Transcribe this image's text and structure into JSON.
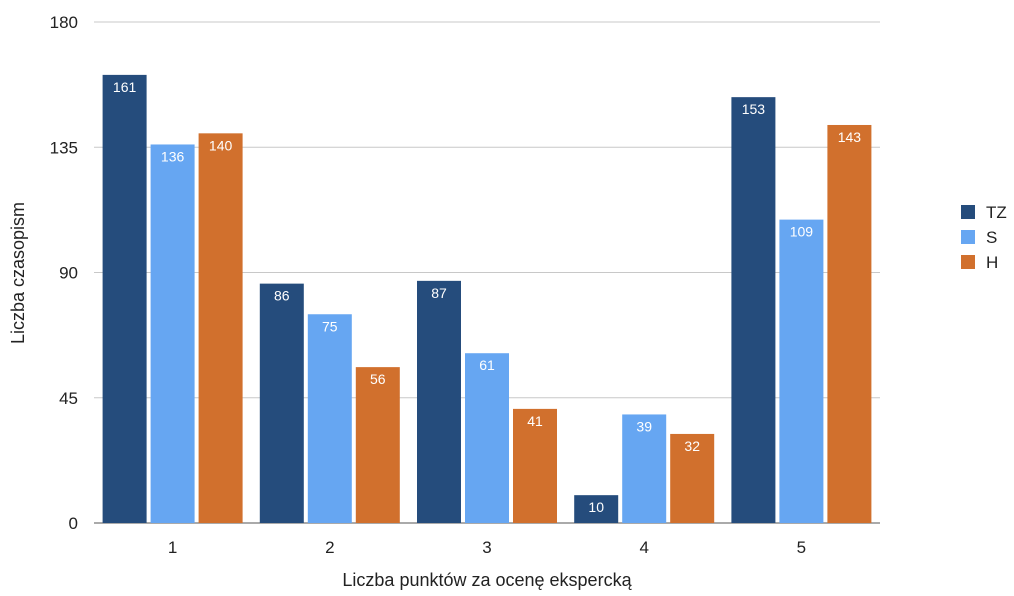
{
  "chart_data": {
    "type": "bar",
    "title": "",
    "xlabel": "Liczba punktów za ocenę ekspercką",
    "ylabel": "Liczba czasopism",
    "categories": [
      "1",
      "2",
      "3",
      "4",
      "5"
    ],
    "ylim": [
      0,
      180
    ],
    "yticks": [
      0,
      45,
      90,
      135,
      180
    ],
    "grid": true,
    "legend_position": "right",
    "series": [
      {
        "name": "TZ",
        "color": "#254c7c",
        "values": [
          161,
          86,
          87,
          10,
          153
        ]
      },
      {
        "name": "S",
        "color": "#66a6f2",
        "values": [
          136,
          75,
          61,
          39,
          109
        ]
      },
      {
        "name": "H",
        "color": "#d1702d",
        "values": [
          140,
          56,
          41,
          32,
          143
        ]
      }
    ]
  }
}
